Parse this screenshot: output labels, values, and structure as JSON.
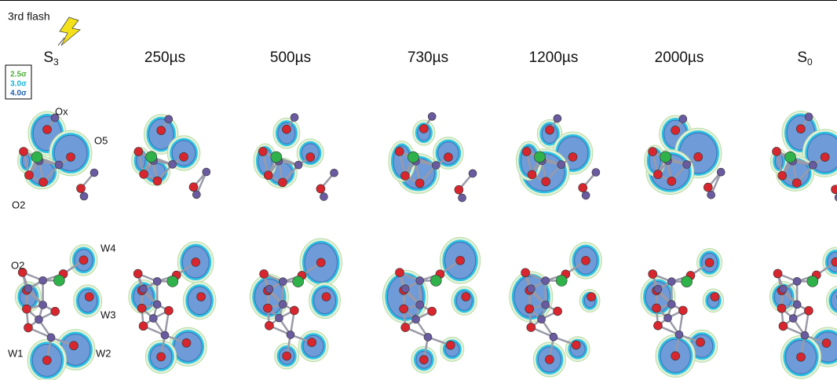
{
  "flash_label": "3rd flash",
  "columns": [
    {
      "text": "S",
      "subscript": "3"
    },
    {
      "text": "250µs"
    },
    {
      "text": "500µs"
    },
    {
      "text": "730µs"
    },
    {
      "text": "1200µs"
    },
    {
      "text": "2000µs"
    },
    {
      "text": "S",
      "subscript": "0"
    }
  ],
  "legend": [
    {
      "label": "2.5σ",
      "color": "#4caf3a"
    },
    {
      "label": "3.0σ",
      "color": "#17b3d9"
    },
    {
      "label": "4.0σ",
      "color": "#1f5fb0"
    }
  ],
  "top_labels": [
    "Ox",
    "O5",
    "O2"
  ],
  "bottom_labels": [
    "W4",
    "O2",
    "W3",
    "W1",
    "W2"
  ]
}
